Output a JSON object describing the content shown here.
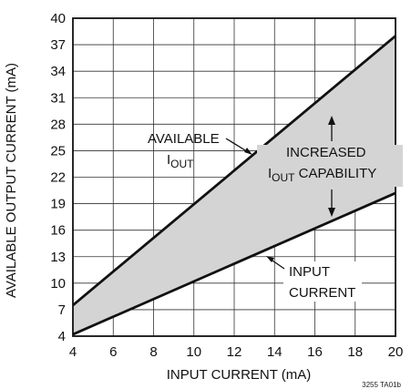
{
  "chart_data": {
    "type": "line",
    "xlabel": "INPUT CURRENT (mA)",
    "ylabel": "AVAILABLE OUTPUT CURRENT (mA)",
    "xlim": [
      4,
      20
    ],
    "ylim": [
      4,
      40
    ],
    "x_ticks": [
      4,
      6,
      8,
      10,
      12,
      14,
      16,
      18,
      20
    ],
    "y_ticks": [
      4,
      7,
      10,
      13,
      16,
      19,
      22,
      25,
      28,
      31,
      34,
      37,
      40
    ],
    "x_tick_labels": [
      "4",
      "6",
      "8",
      "10",
      "12",
      "14",
      "16",
      "18",
      "20"
    ],
    "y_tick_labels": [
      "4",
      "7",
      "10",
      "13",
      "16",
      "19",
      "22",
      "25",
      "28",
      "31",
      "34",
      "37",
      "40"
    ],
    "grid": true,
    "fill_between_series": true,
    "fill_color": "#d4d4d4",
    "line_color": "#111111",
    "series": [
      {
        "x": [
          4,
          20
        ],
        "y": [
          7.5,
          38
        ]
      },
      {
        "x": [
          4,
          20
        ],
        "y": [
          4.2,
          20.2
        ]
      }
    ],
    "annotations": {
      "available_line1": "AVAILABLE",
      "available_line2_main": "I",
      "available_line2_sub": "OUT",
      "increased_line1": "INCREASED",
      "increased_line2_main": "I",
      "increased_line2_sub": "OUT",
      "increased_line2_rest": " CAPABILITY",
      "input_line1": "INPUT",
      "input_line2": "CURRENT"
    },
    "figure_code": "3255 TA01b"
  }
}
